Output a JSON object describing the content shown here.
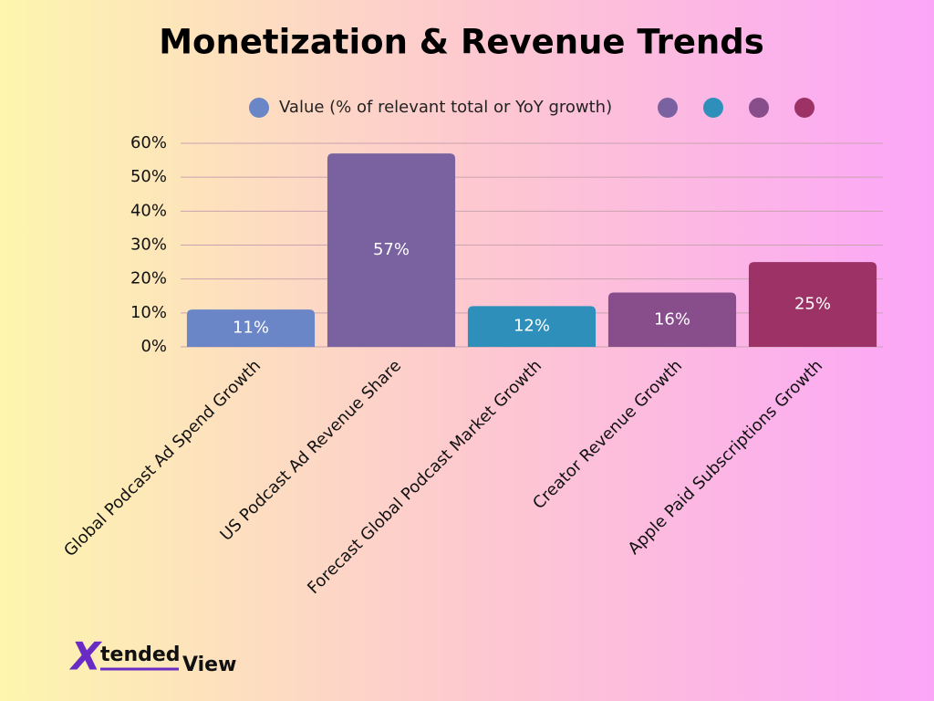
{
  "chart_data": {
    "type": "bar",
    "title": "Monetization & Revenue Trends",
    "series_name": "Value (% of relevant total or YoY growth)",
    "categories": [
      "Global Podcast Ad Spend Growth",
      "US Podcast Ad Revenue Share",
      "Forecast Global Podcast Market Growth",
      "Creator Revenue Growth",
      "Apple Paid Subscriptions Growth"
    ],
    "values": [
      11,
      57,
      12,
      16,
      25
    ],
    "value_labels": [
      "11%",
      "57%",
      "12%",
      "16%",
      "25%"
    ],
    "colors": [
      "#6a86c7",
      "#7a62a0",
      "#2e8fbb",
      "#884e8c",
      "#9c3266"
    ],
    "ylim": [
      0,
      60
    ],
    "yticks": [
      {
        "value": 0,
        "label": "0%"
      },
      {
        "value": 10,
        "label": "10%"
      },
      {
        "value": 20,
        "label": "20%"
      },
      {
        "value": 30,
        "label": "30%"
      },
      {
        "value": 40,
        "label": "40%"
      },
      {
        "value": 50,
        "label": "50%"
      },
      {
        "value": 60,
        "label": "60%"
      }
    ],
    "grid": true
  },
  "logo": {
    "mark": "X",
    "word1": "tended",
    "word2": "View"
  }
}
